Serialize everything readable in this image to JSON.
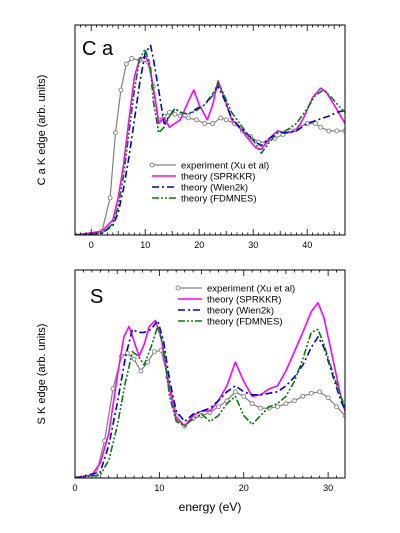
{
  "chart_data": [
    {
      "type": "line",
      "panel_label": "C a",
      "xlabel": "",
      "ylabel": "C a  K edge    (arb. units)",
      "xlim": [
        -3,
        47
      ],
      "ylim": [
        0,
        1.13
      ],
      "xticks": [
        0,
        10,
        20,
        30,
        40
      ],
      "legend_position": "center-right",
      "series": [
        {
          "name": "experiment (Xu et al)",
          "color": "#808080",
          "style": "circles",
          "x": [
            -3,
            2,
            3.5,
            4.5,
            5.5,
            6.5,
            7.5,
            9,
            10.5,
            11.5,
            12.5,
            13.5,
            14.5,
            15.5,
            16.5,
            18,
            19.5,
            21,
            22.5,
            24,
            25,
            26.5,
            28,
            29.5,
            31,
            32.5,
            34,
            35.5,
            37,
            38.5,
            40,
            41.5,
            42.5,
            44,
            45.5,
            47
          ],
          "y": [
            0.0,
            0.02,
            0.2,
            0.55,
            0.78,
            0.92,
            0.95,
            0.94,
            0.93,
            0.8,
            0.62,
            0.64,
            0.66,
            0.65,
            0.64,
            0.63,
            0.62,
            0.6,
            0.6,
            0.63,
            0.62,
            0.6,
            0.56,
            0.53,
            0.5,
            0.5,
            0.52,
            0.54,
            0.56,
            0.58,
            0.6,
            0.6,
            0.58,
            0.56,
            0.56,
            0.56
          ]
        },
        {
          "name": "theory (SPRKKR)",
          "color": "#ff00ff",
          "style": "solid",
          "x": [
            -3,
            2,
            4,
            5,
            6,
            7,
            8,
            9,
            10,
            10.5,
            11,
            12,
            12.5,
            13.5,
            14.5,
            15.5,
            16.5,
            18,
            19,
            20,
            21.5,
            22.5,
            23.5,
            24.5,
            26,
            27.5,
            29,
            30.5,
            31.5,
            33,
            34.5,
            36,
            38,
            39.5,
            41,
            42.5,
            43.5,
            45,
            46,
            47
          ],
          "y": [
            0.0,
            0.02,
            0.08,
            0.2,
            0.38,
            0.62,
            0.85,
            0.95,
            0.96,
            0.94,
            0.88,
            0.7,
            0.6,
            0.63,
            0.58,
            0.6,
            0.62,
            0.72,
            0.78,
            0.7,
            0.62,
            0.7,
            0.83,
            0.75,
            0.62,
            0.58,
            0.52,
            0.47,
            0.46,
            0.52,
            0.56,
            0.55,
            0.56,
            0.64,
            0.74,
            0.79,
            0.77,
            0.7,
            0.65,
            0.6
          ]
        },
        {
          "name": "theory (Wien2k)",
          "color": "#0000cc",
          "style": "dashdot",
          "x": [
            -3,
            2,
            4,
            5,
            6,
            7,
            8,
            9,
            10,
            11,
            11.5,
            12.5,
            13.5,
            14.5,
            15.5,
            16.5,
            18,
            19.5,
            21,
            22.5,
            23.5,
            24.5,
            26,
            27.5,
            29,
            30.5,
            31.5,
            33,
            34.5,
            36,
            38,
            40,
            42,
            44,
            45.5,
            47
          ],
          "y": [
            0.0,
            0.01,
            0.05,
            0.12,
            0.25,
            0.42,
            0.62,
            0.82,
            0.98,
            1.02,
            0.95,
            0.78,
            0.6,
            0.64,
            0.68,
            0.66,
            0.65,
            0.68,
            0.7,
            0.76,
            0.8,
            0.74,
            0.63,
            0.58,
            0.54,
            0.5,
            0.48,
            0.52,
            0.55,
            0.55,
            0.56,
            0.6,
            0.62,
            0.64,
            0.66,
            0.67
          ]
        },
        {
          "name": "theory (FDMNES)",
          "color": "#008000",
          "style": "dashdotdot",
          "x": [
            -3,
            2,
            4,
            5,
            6,
            7,
            8,
            9,
            10,
            11,
            11.5,
            12.5,
            13.5,
            14.5,
            15.5,
            16.5,
            18,
            19.5,
            21,
            22.5,
            23.5,
            24.5,
            26,
            27.5,
            29,
            30.5,
            31.5,
            33,
            34.5,
            36,
            38,
            40,
            41.5,
            43,
            44.5,
            46,
            47
          ],
          "y": [
            0.0,
            0.01,
            0.06,
            0.15,
            0.32,
            0.55,
            0.78,
            0.95,
            1.0,
            0.9,
            0.72,
            0.55,
            0.58,
            0.64,
            0.68,
            0.66,
            0.65,
            0.67,
            0.7,
            0.75,
            0.82,
            0.76,
            0.66,
            0.6,
            0.54,
            0.49,
            0.44,
            0.5,
            0.55,
            0.56,
            0.6,
            0.68,
            0.75,
            0.78,
            0.74,
            0.69,
            0.66
          ]
        }
      ]
    },
    {
      "type": "line",
      "panel_label": "S",
      "xlabel": "energy    (eV)",
      "ylabel": "S  K edge    (arb. units)",
      "xlim": [
        0,
        32
      ],
      "ylim": [
        0,
        1.4
      ],
      "xticks": [
        0,
        10,
        20,
        30
      ],
      "legend_position": "top-right",
      "series": [
        {
          "name": "experiment (Xu et al)",
          "color": "#808080",
          "style": "circles",
          "x": [
            0,
            2.5,
            3.5,
            4.5,
            5.5,
            6.2,
            7,
            7.8,
            8.6,
            9.4,
            10.2,
            11,
            12,
            13,
            14,
            15,
            16,
            17,
            18,
            19,
            20,
            21,
            22,
            23,
            24,
            25,
            26,
            27,
            28,
            29,
            30,
            31,
            32
          ],
          "y": [
            0.0,
            0.02,
            0.25,
            0.6,
            0.82,
            0.84,
            0.8,
            0.72,
            0.78,
            0.85,
            0.86,
            0.68,
            0.42,
            0.35,
            0.4,
            0.42,
            0.44,
            0.48,
            0.52,
            0.58,
            0.55,
            0.5,
            0.47,
            0.47,
            0.48,
            0.5,
            0.52,
            0.55,
            0.57,
            0.58,
            0.54,
            0.48,
            0.42
          ]
        },
        {
          "name": "theory (SPRKKR)",
          "color": "#ff00ff",
          "style": "solid",
          "x": [
            0,
            2,
            3,
            4,
            5,
            5.8,
            6.4,
            7,
            7.6,
            8.2,
            8.8,
            9.5,
            10.2,
            11,
            12,
            13,
            14,
            15,
            16,
            17,
            18,
            19,
            20,
            21,
            22,
            23,
            24,
            25,
            26,
            27,
            28,
            28.8,
            29.5,
            30.5,
            31.5,
            32
          ],
          "y": [
            0.0,
            0.02,
            0.1,
            0.3,
            0.68,
            0.95,
            1.02,
            0.92,
            0.82,
            0.9,
            1.02,
            1.06,
            0.95,
            0.65,
            0.4,
            0.35,
            0.42,
            0.45,
            0.45,
            0.52,
            0.62,
            0.78,
            0.65,
            0.55,
            0.56,
            0.6,
            0.62,
            0.72,
            0.85,
            0.98,
            1.12,
            1.18,
            1.08,
            0.82,
            0.55,
            0.45
          ]
        },
        {
          "name": "theory (Wien2k)",
          "color": "#0000cc",
          "style": "dashdot",
          "x": [
            0,
            3,
            4,
            5,
            6,
            6.8,
            7.5,
            8.2,
            9,
            9.8,
            10.5,
            11.2,
            12,
            13,
            14,
            15,
            16,
            17,
            18,
            19,
            20,
            21,
            22,
            23,
            24,
            25,
            26,
            27,
            28,
            28.8,
            29.5,
            30.5,
            31.5,
            32
          ],
          "y": [
            0.0,
            0.04,
            0.22,
            0.5,
            0.82,
            1.0,
            0.98,
            0.98,
            1.0,
            1.06,
            0.92,
            0.66,
            0.45,
            0.38,
            0.43,
            0.45,
            0.47,
            0.52,
            0.58,
            0.62,
            0.58,
            0.56,
            0.56,
            0.57,
            0.58,
            0.62,
            0.68,
            0.76,
            0.88,
            0.95,
            0.88,
            0.7,
            0.52,
            0.46
          ]
        },
        {
          "name": "theory (FDMNES)",
          "color": "#008000",
          "style": "dashdotdot",
          "x": [
            0,
            3,
            4,
            5,
            6,
            6.8,
            7.5,
            8.2,
            9,
            9.8,
            10.5,
            11.2,
            12,
            13,
            14,
            15,
            16,
            17,
            18,
            19,
            20,
            21,
            22,
            23,
            24,
            25,
            26,
            27,
            28,
            28.8,
            29.5,
            30.5,
            31.5,
            32
          ],
          "y": [
            0.0,
            0.02,
            0.12,
            0.35,
            0.65,
            0.85,
            0.82,
            0.76,
            0.88,
            1.02,
            0.88,
            0.55,
            0.38,
            0.35,
            0.4,
            0.43,
            0.38,
            0.42,
            0.5,
            0.55,
            0.42,
            0.36,
            0.42,
            0.48,
            0.5,
            0.55,
            0.65,
            0.8,
            0.98,
            1.0,
            0.9,
            0.72,
            0.55,
            0.48
          ]
        }
      ]
    }
  ]
}
